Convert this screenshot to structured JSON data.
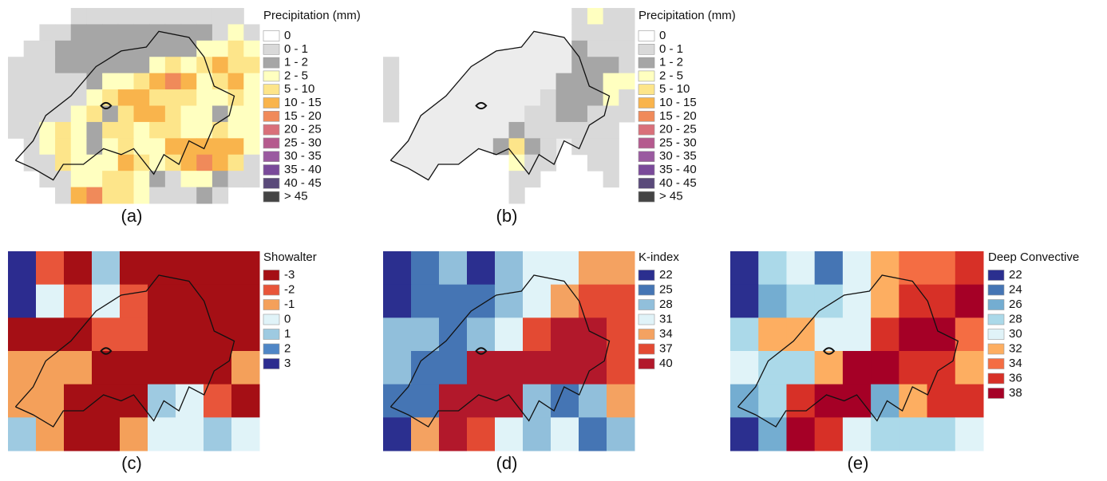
{
  "panels": [
    {
      "label": "(a)",
      "legend": {
        "title": "Precipitation (mm)",
        "labels": [
          "0",
          "0 - 1",
          "1 - 2",
          "2 - 5",
          "5 - 10",
          "10 - 15",
          "15 - 20",
          "20 - 25",
          "25 - 30",
          "30 - 35",
          "35 - 40",
          "40 - 45",
          "> 45"
        ],
        "colors": [
          "#ffffff",
          "#d9d9d9",
          "#a6a6a6",
          "#ffffc0",
          "#fde58a",
          "#f9b44c",
          "#f08a5a",
          "#d9707a",
          "#b55a8e",
          "#9a5aa0",
          "#7a4a9a",
          "#5a4a7a",
          "#444444"
        ]
      },
      "cells": [
        [
          null,
          null,
          null,
          null,
          1,
          1,
          1,
          1,
          1,
          1,
          1,
          1,
          1,
          1,
          1,
          null
        ],
        [
          null,
          null,
          1,
          1,
          2,
          2,
          2,
          2,
          2,
          2,
          2,
          2,
          2,
          1,
          3,
          1
        ],
        [
          null,
          1,
          1,
          2,
          2,
          2,
          2,
          2,
          2,
          2,
          2,
          2,
          3,
          3,
          4,
          3
        ],
        [
          1,
          1,
          1,
          2,
          2,
          2,
          2,
          2,
          2,
          3,
          4,
          3,
          4,
          5,
          4,
          4
        ],
        [
          1,
          1,
          1,
          1,
          1,
          2,
          3,
          3,
          4,
          5,
          6,
          5,
          3,
          4,
          5,
          3
        ],
        [
          1,
          1,
          1,
          1,
          1,
          3,
          4,
          5,
          5,
          4,
          4,
          4,
          3,
          3,
          4,
          3
        ],
        [
          1,
          1,
          1,
          1,
          3,
          4,
          2,
          4,
          5,
          5,
          4,
          3,
          3,
          2,
          3,
          3
        ],
        [
          1,
          1,
          3,
          4,
          3,
          2,
          4,
          4,
          3,
          4,
          4,
          3,
          3,
          4,
          3,
          3
        ],
        [
          null,
          1,
          3,
          4,
          3,
          2,
          3,
          4,
          3,
          3,
          5,
          5,
          5,
          5,
          5,
          3
        ],
        [
          null,
          1,
          1,
          4,
          3,
          3,
          3,
          5,
          4,
          3,
          4,
          5,
          6,
          5,
          4,
          1
        ],
        [
          null,
          null,
          1,
          1,
          3,
          3,
          4,
          4,
          3,
          2,
          1,
          3,
          3,
          2,
          1,
          1
        ],
        [
          null,
          null,
          null,
          1,
          5,
          6,
          4,
          4,
          3,
          1,
          1,
          1,
          2,
          1,
          null,
          null
        ]
      ]
    },
    {
      "label": "(b)",
      "legend": {
        "title": "Precipitation (mm)",
        "labels": [
          "0",
          "0 - 1",
          "1 - 2",
          "2 - 5",
          "5 - 10",
          "10 - 15",
          "15 - 20",
          "20 - 25",
          "25 - 30",
          "30 - 35",
          "35 - 40",
          "40 - 45",
          "> 45"
        ],
        "colors": [
          "#ffffff",
          "#d9d9d9",
          "#a6a6a6",
          "#ffffc0",
          "#fde58a",
          "#f9b44c",
          "#f08a5a",
          "#d9707a",
          "#b55a8e",
          "#9a5aa0",
          "#7a4a9a",
          "#5a4a7a",
          "#444444"
        ]
      },
      "cells": [
        [
          null,
          null,
          null,
          null,
          null,
          null,
          null,
          null,
          null,
          null,
          null,
          null,
          1,
          3,
          1,
          1
        ],
        [
          null,
          null,
          null,
          null,
          null,
          null,
          null,
          null,
          null,
          null,
          null,
          null,
          1,
          1,
          1,
          1
        ],
        [
          null,
          null,
          null,
          null,
          null,
          null,
          null,
          null,
          null,
          null,
          null,
          null,
          2,
          1,
          1,
          1
        ],
        [
          1,
          null,
          null,
          null,
          null,
          null,
          null,
          null,
          null,
          null,
          null,
          null,
          2,
          2,
          2,
          1
        ],
        [
          1,
          null,
          null,
          null,
          null,
          null,
          null,
          null,
          null,
          null,
          null,
          2,
          2,
          2,
          3,
          3
        ],
        [
          1,
          null,
          null,
          null,
          null,
          null,
          null,
          null,
          null,
          null,
          1,
          2,
          2,
          2,
          3,
          1
        ],
        [
          1,
          null,
          null,
          null,
          null,
          null,
          null,
          null,
          null,
          1,
          1,
          2,
          2,
          1,
          1,
          1
        ],
        [
          null,
          null,
          null,
          null,
          null,
          null,
          null,
          null,
          2,
          1,
          1,
          1,
          1,
          1,
          1,
          null
        ],
        [
          null,
          null,
          null,
          null,
          null,
          null,
          null,
          2,
          4,
          2,
          1,
          null,
          1,
          1,
          1,
          null
        ],
        [
          null,
          null,
          null,
          null,
          null,
          null,
          null,
          null,
          3,
          1,
          1,
          null,
          null,
          1,
          1,
          null
        ],
        [
          null,
          null,
          null,
          null,
          null,
          null,
          null,
          null,
          1,
          1,
          null,
          null,
          null,
          null,
          1,
          null
        ],
        [
          null,
          null,
          null,
          null,
          null,
          null,
          null,
          null,
          1,
          null,
          null,
          null,
          null,
          null,
          null,
          null
        ]
      ]
    },
    {
      "label": "(c)",
      "legend": {
        "title": "Showalter",
        "labels": [
          "-3",
          "-2",
          "-1",
          "0",
          "1",
          "2",
          "3"
        ],
        "colors": [
          "#a50f15",
          "#e8553a",
          "#f4a05a",
          "#e0f3f8",
          "#9ecae1",
          "#4f86c6",
          "#2c2c8f"
        ]
      },
      "cells": [
        [
          6,
          1,
          0,
          4,
          0,
          0,
          0,
          0,
          0
        ],
        [
          6,
          3,
          1,
          3,
          1,
          0,
          0,
          0,
          0
        ],
        [
          0,
          0,
          0,
          1,
          1,
          0,
          0,
          0,
          0
        ],
        [
          2,
          2,
          2,
          0,
          0,
          0,
          0,
          0,
          2
        ],
        [
          2,
          2,
          0,
          0,
          0,
          4,
          3,
          1,
          0
        ],
        [
          4,
          2,
          0,
          0,
          2,
          3,
          3,
          4,
          3
        ]
      ]
    },
    {
      "label": "(d)",
      "legend": {
        "title": "K-index",
        "labels": [
          "22",
          "25",
          "28",
          "31",
          "34",
          "37",
          "40"
        ],
        "colors": [
          "#2b2f8f",
          "#4575b4",
          "#91bfdb",
          "#e0f3f8",
          "#f4a261",
          "#e34a33",
          "#b2182b"
        ]
      },
      "cells": [
        [
          0,
          1,
          2,
          0,
          2,
          3,
          3,
          4,
          4
        ],
        [
          0,
          1,
          1,
          1,
          2,
          3,
          4,
          5,
          5
        ],
        [
          2,
          2,
          1,
          2,
          3,
          5,
          6,
          6,
          5
        ],
        [
          2,
          1,
          1,
          6,
          6,
          6,
          6,
          6,
          5
        ],
        [
          1,
          1,
          6,
          6,
          6,
          2,
          1,
          2,
          4
        ],
        [
          0,
          4,
          6,
          5,
          3,
          2,
          3,
          1,
          2
        ]
      ]
    },
    {
      "label": "(e)",
      "legend": {
        "title": "Deep Convective",
        "labels": [
          "22",
          "24",
          "26",
          "28",
          "30",
          "32",
          "34",
          "36",
          "38"
        ],
        "colors": [
          "#2b2f8f",
          "#4575b4",
          "#74add1",
          "#abd9e9",
          "#e0f3f8",
          "#fdae61",
          "#f46d43",
          "#d73027",
          "#a50026"
        ]
      },
      "cells": [
        [
          0,
          3,
          4,
          1,
          4,
          5,
          6,
          6,
          7
        ],
        [
          0,
          2,
          3,
          3,
          4,
          5,
          7,
          7,
          8
        ],
        [
          3,
          5,
          5,
          4,
          4,
          7,
          8,
          8,
          6
        ],
        [
          4,
          3,
          3,
          5,
          8,
          8,
          7,
          7,
          5
        ],
        [
          2,
          3,
          7,
          8,
          8,
          2,
          5,
          7,
          7
        ],
        [
          0,
          2,
          8,
          7,
          4,
          3,
          3,
          3,
          4
        ]
      ]
    }
  ]
}
